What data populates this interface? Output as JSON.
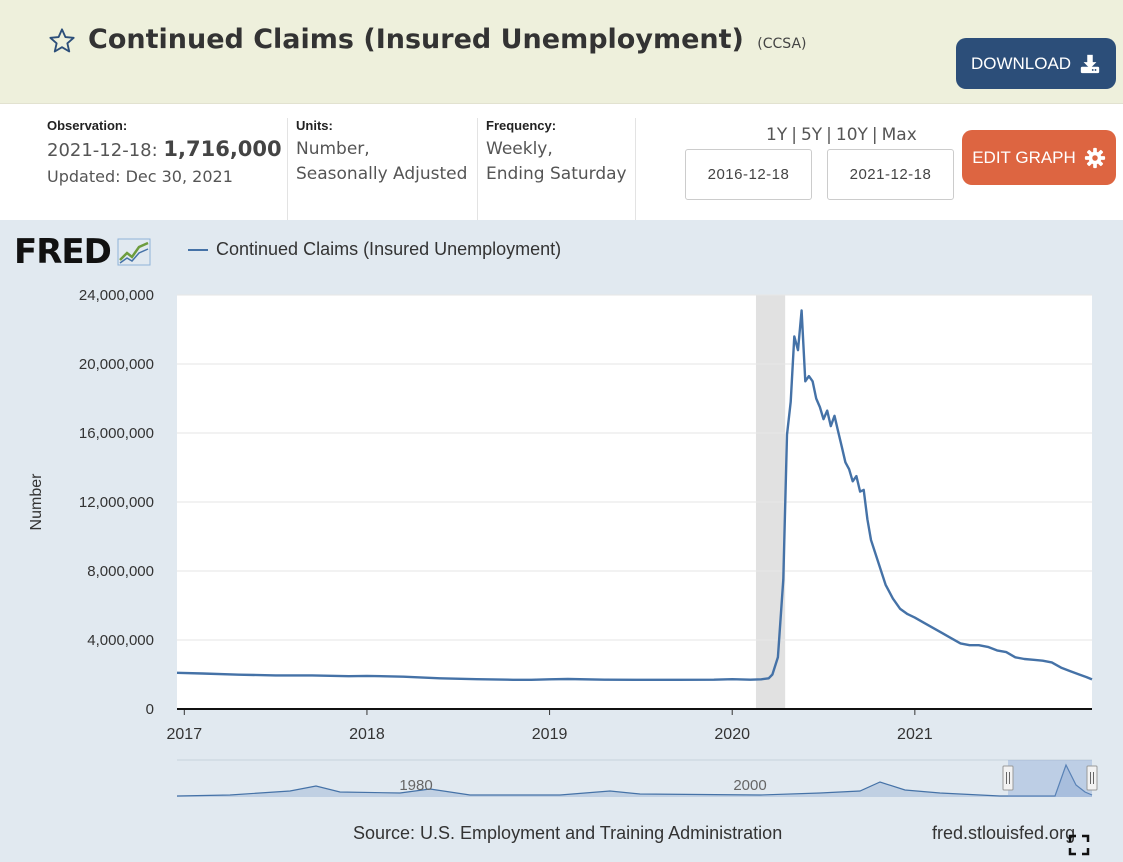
{
  "header": {
    "title": "Continued Claims (Insured Unemployment)",
    "series_code": "(CCSA)",
    "download_label": "DOWNLOAD"
  },
  "meta": {
    "observation_label": "Observation:",
    "observation_date": "2021-12-18:",
    "observation_value": "1,716,000",
    "updated": "Updated: Dec 30, 2021",
    "units_label": "Units:",
    "units_line1": "Number,",
    "units_line2": "Seasonally Adjusted",
    "frequency_label": "Frequency:",
    "frequency_line1": "Weekly,",
    "frequency_line2": "Ending Saturday"
  },
  "controls": {
    "ranges": [
      "1Y",
      "5Y",
      "10Y",
      "Max"
    ],
    "start_date": "2016-12-18",
    "end_date": "2021-12-18",
    "edit_label": "EDIT GRAPH"
  },
  "graph": {
    "logo_text": "FRED",
    "legend_label": "Continued Claims (Insured Unemployment)",
    "source": "Source: U.S. Employment and Training Administration",
    "site": "fred.stlouisfed.org"
  },
  "colors": {
    "series": "#4572a7",
    "download_bg": "#2c4e79",
    "edit_bg": "#dd6541",
    "header_bg": "#eef0dc",
    "graph_bg": "#e1e9f0"
  },
  "chart_data": {
    "type": "line",
    "title": "",
    "ylabel": "Number",
    "xlabel": "",
    "ylim": [
      0,
      24000000
    ],
    "yticks": [
      0,
      4000000,
      8000000,
      12000000,
      16000000,
      20000000,
      24000000
    ],
    "ytick_labels": [
      "0",
      "4,000,000",
      "8,000,000",
      "12,000,000",
      "16,000,000",
      "20,000,000",
      "24,000,000"
    ],
    "xlim": [
      2016.96,
      2021.97
    ],
    "xticks": [
      2017,
      2018,
      2019,
      2020,
      2021
    ],
    "xtick_labels": [
      "2017",
      "2018",
      "2019",
      "2020",
      "2021"
    ],
    "recession_shading": [
      [
        2020.13,
        2020.29
      ]
    ],
    "navigator_labels": [
      "1980",
      "2000"
    ],
    "series": [
      {
        "name": "Continued Claims (Insured Unemployment)",
        "x": [
          2016.96,
          2017.1,
          2017.3,
          2017.5,
          2017.7,
          2017.9,
          2018.0,
          2018.2,
          2018.4,
          2018.6,
          2018.8,
          2018.9,
          2019.0,
          2019.1,
          2019.3,
          2019.5,
          2019.7,
          2019.9,
          2020.0,
          2020.1,
          2020.16,
          2020.2,
          2020.22,
          2020.25,
          2020.28,
          2020.3,
          2020.32,
          2020.34,
          2020.36,
          2020.38,
          2020.4,
          2020.42,
          2020.44,
          2020.46,
          2020.48,
          2020.5,
          2020.52,
          2020.54,
          2020.56,
          2020.58,
          2020.6,
          2020.62,
          2020.64,
          2020.66,
          2020.68,
          2020.7,
          2020.72,
          2020.74,
          2020.76,
          2020.8,
          2020.84,
          2020.88,
          2020.92,
          2020.96,
          2021.0,
          2021.05,
          2021.1,
          2021.15,
          2021.2,
          2021.25,
          2021.3,
          2021.35,
          2021.4,
          2021.45,
          2021.5,
          2021.55,
          2021.6,
          2021.65,
          2021.7,
          2021.75,
          2021.8,
          2021.85,
          2021.9,
          2021.94,
          2021.97
        ],
        "values": [
          2100000,
          2060000,
          1990000,
          1950000,
          1950000,
          1900000,
          1920000,
          1870000,
          1780000,
          1730000,
          1690000,
          1690000,
          1720000,
          1740000,
          1700000,
          1690000,
          1690000,
          1700000,
          1730000,
          1700000,
          1720000,
          1780000,
          2000000,
          3000000,
          7500000,
          15900000,
          17800000,
          21600000,
          20800000,
          23100000,
          19000000,
          19300000,
          19000000,
          18000000,
          17500000,
          16800000,
          17300000,
          16400000,
          17000000,
          16100000,
          15200000,
          14300000,
          13900000,
          13200000,
          13500000,
          12600000,
          12700000,
          11000000,
          9800000,
          8500000,
          7200000,
          6400000,
          5800000,
          5500000,
          5300000,
          5000000,
          4700000,
          4400000,
          4100000,
          3800000,
          3700000,
          3700000,
          3600000,
          3400000,
          3300000,
          3000000,
          2900000,
          2850000,
          2800000,
          2700000,
          2400000,
          2200000,
          2000000,
          1850000,
          1716000
        ]
      }
    ]
  }
}
